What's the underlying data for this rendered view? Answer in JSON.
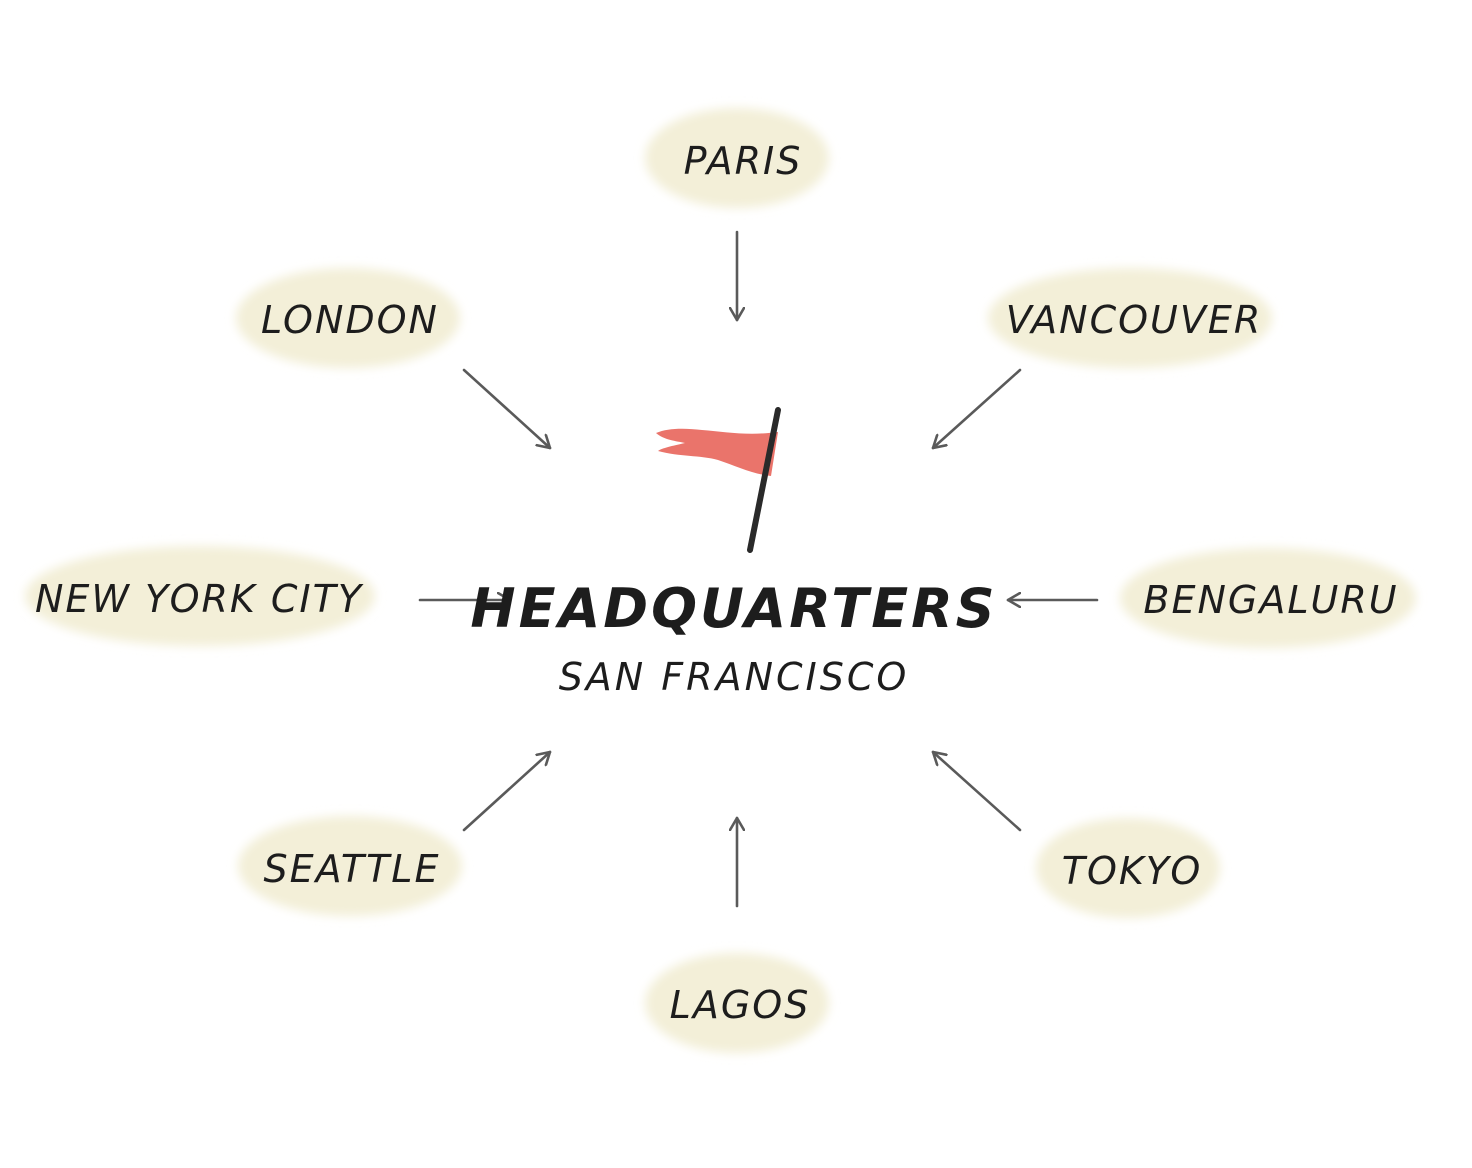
{
  "hub": {
    "title": "HEADQUARTERS",
    "subtitle": "SAN FRANCISCO"
  },
  "cities": [
    {
      "name": "PARIS"
    },
    {
      "name": "VANCOUVER"
    },
    {
      "name": "BENGALURU"
    },
    {
      "name": "TOKYO"
    },
    {
      "name": "LAGOS"
    },
    {
      "name": "SEATTLE"
    },
    {
      "name": "NEW YORK CITY"
    },
    {
      "name": "LONDON"
    }
  ],
  "colors": {
    "blob": "#f3efd8",
    "arrow": "#5a5a5a",
    "text": "#1d1d1d",
    "flag": "#e8685e",
    "pole": "#2a2a2a"
  },
  "icons": {
    "hub": "flag-icon",
    "connector": "arrow-icon"
  }
}
